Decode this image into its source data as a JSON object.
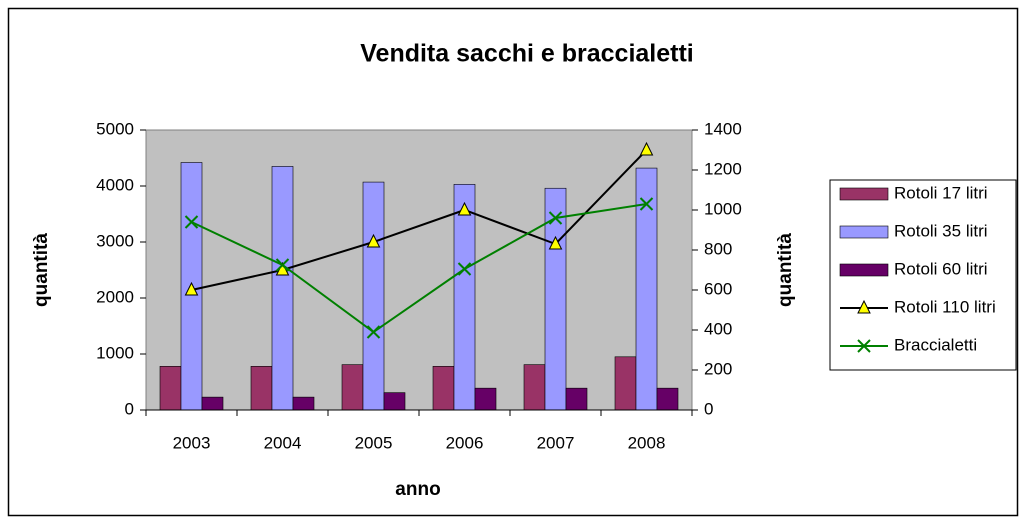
{
  "chart_data": {
    "type": "bar-line",
    "title": "Vendita sacchi e braccialetti",
    "xlabel": "anno",
    "ylabel": "quantità",
    "y2label": "quantità",
    "categories": [
      "2003",
      "2004",
      "2005",
      "2006",
      "2007",
      "2008"
    ],
    "ylim": [
      0,
      5000
    ],
    "yticks": [
      0,
      1000,
      2000,
      3000,
      4000,
      5000
    ],
    "y2lim": [
      0,
      1400
    ],
    "y2ticks": [
      0,
      200,
      400,
      600,
      800,
      1000,
      1200,
      1400
    ],
    "legend": "right",
    "plot_background": "#c0c0c0",
    "series": [
      {
        "name": "Rotoli 17 litri",
        "type": "bar",
        "color": "#993366",
        "values": [
          780,
          780,
          810,
          780,
          810,
          950
        ]
      },
      {
        "name": "Rotoli 35 litri",
        "type": "bar",
        "color": "#9999ff",
        "values": [
          4420,
          4350,
          4070,
          4030,
          3960,
          4320
        ]
      },
      {
        "name": "Rotoli 60 litri",
        "type": "bar",
        "color": "#660066",
        "values": [
          230,
          230,
          310,
          390,
          390,
          390
        ]
      },
      {
        "name": "Rotoli 110 litri",
        "type": "line",
        "axis": "y2",
        "color": "#000000",
        "marker": "triangle",
        "marker_color": "#ffff00",
        "values": [
          600,
          700,
          840,
          1000,
          830,
          1300
        ]
      },
      {
        "name": "Braccialetti",
        "type": "line",
        "axis": "y2",
        "color": "#008000",
        "marker": "x",
        "values": [
          940,
          725,
          390,
          705,
          960,
          1030
        ]
      }
    ]
  }
}
